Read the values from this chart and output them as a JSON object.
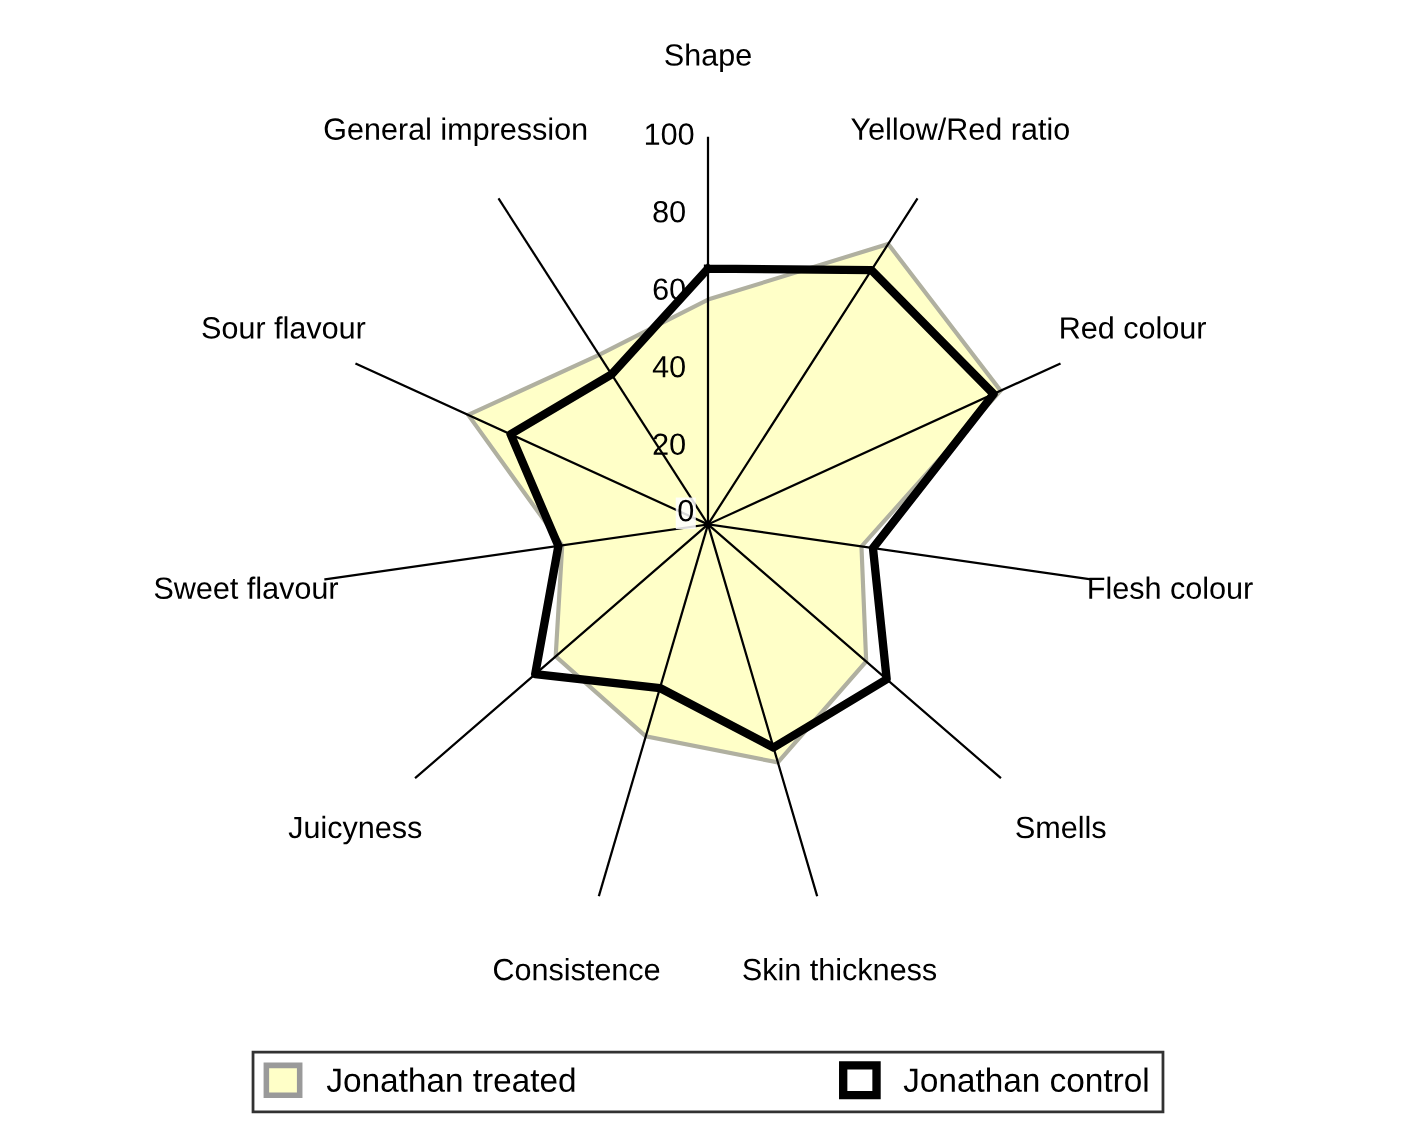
{
  "chart_data": {
    "type": "radar",
    "categories": [
      "Shape",
      "Yellow/Red ratio",
      "Red colour",
      "Flesh colour",
      "Smells",
      "Skin thickness",
      "Consistence",
      "Juicyness",
      "Sweet flavour",
      "Sour flavour",
      "General impression"
    ],
    "series": [
      {
        "name": "Jonathan treated",
        "color": "#ffffc8",
        "values": [
          58,
          86,
          83,
          40,
          54,
          64,
          57,
          52,
          38,
          68,
          52
        ]
      },
      {
        "name": "Jonathan control",
        "color": "#000000",
        "values": [
          66,
          78,
          81,
          43,
          61,
          60,
          44,
          59,
          39,
          56,
          46
        ]
      }
    ],
    "ylim": [
      0,
      100
    ],
    "yticks": [
      0,
      20,
      40,
      60,
      80,
      100
    ],
    "grid": "x",
    "legend": "bottom",
    "marker": "none"
  }
}
